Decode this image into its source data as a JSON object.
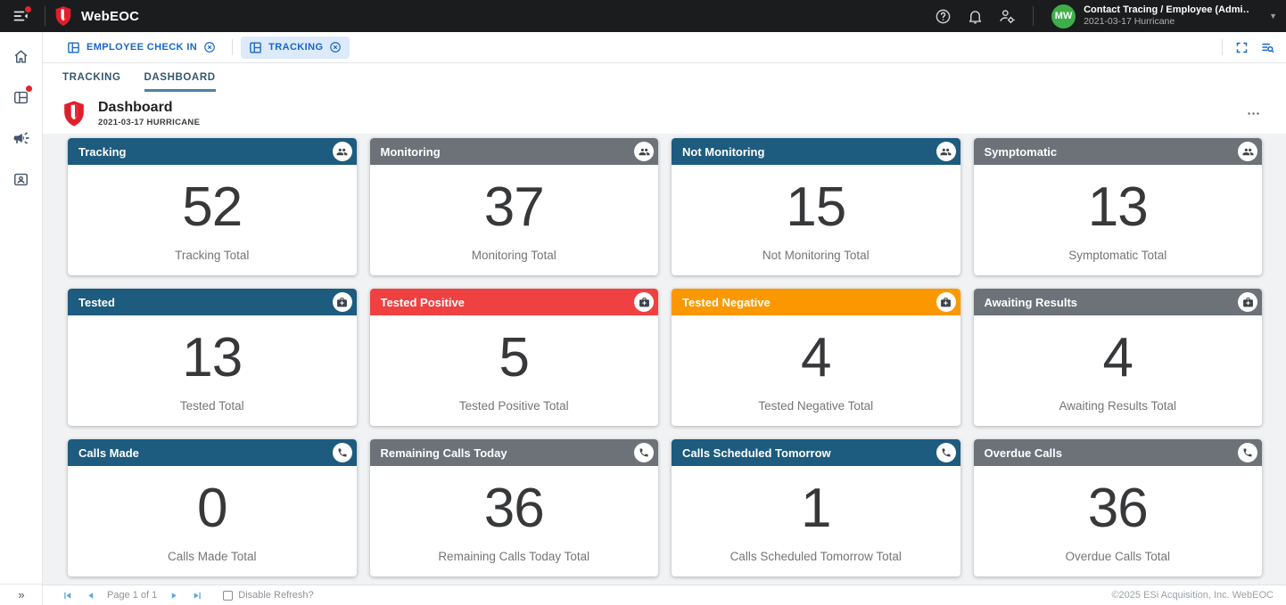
{
  "topbar": {
    "app_title": "WebEOC",
    "user_name": "Contact Tracing / Employee (Admi…",
    "user_incident": "2021-03-17 Hurricane",
    "avatar_initials": "MW",
    "icons": [
      "menu-open-icon",
      "help-icon",
      "notifications-icon",
      "manage-accounts-icon"
    ]
  },
  "sidebar": {
    "icons": [
      "home-icon",
      "boards-icon",
      "campaign-icon",
      "contacts-icon"
    ],
    "expand_label": "»"
  },
  "tabstrip": {
    "tabs": [
      {
        "label": "EMPLOYEE CHECK IN",
        "active": false
      },
      {
        "label": "TRACKING",
        "active": true
      }
    ],
    "icons": [
      "fullscreen-icon",
      "board-search-icon"
    ]
  },
  "board": {
    "subtabs": [
      {
        "label": "TRACKING",
        "active": false
      },
      {
        "label": "DASHBOARD",
        "active": true
      }
    ],
    "title": "Dashboard",
    "subtitle": "2021-03-17 HURRICANE",
    "more_options": "more-options-icon"
  },
  "colors": {
    "blue": "#1d5b7f",
    "gray": "#6c7278",
    "red": "#ef4141",
    "orange": "#fb9800",
    "tab_accent": "#1868c5",
    "avatar_green": "#3fae49",
    "logo_red": "#e01f2d"
  },
  "cards": [
    {
      "title": "Tracking",
      "value": "52",
      "label": "Tracking Total",
      "color": "blue",
      "icon": "groups-icon"
    },
    {
      "title": "Monitoring",
      "value": "37",
      "label": "Monitoring Total",
      "color": "gray",
      "icon": "groups-icon"
    },
    {
      "title": "Not Monitoring",
      "value": "15",
      "label": "Not Monitoring Total",
      "color": "blue",
      "icon": "groups-icon"
    },
    {
      "title": "Symptomatic",
      "value": "13",
      "label": "Symptomatic Total",
      "color": "gray",
      "icon": "groups-icon"
    },
    {
      "title": "Tested",
      "value": "13",
      "label": "Tested Total",
      "color": "blue",
      "icon": "medical-icon"
    },
    {
      "title": "Tested Positive",
      "value": "5",
      "label": "Tested Positive Total",
      "color": "red",
      "icon": "medical-icon"
    },
    {
      "title": "Tested Negative",
      "value": "4",
      "label": "Tested Negative Total",
      "color": "orange",
      "icon": "medical-icon"
    },
    {
      "title": "Awaiting Results",
      "value": "4",
      "label": "Awaiting Results Total",
      "color": "gray",
      "icon": "medical-icon"
    },
    {
      "title": "Calls Made",
      "value": "0",
      "label": "Calls Made Total",
      "color": "blue",
      "icon": "phone-icon"
    },
    {
      "title": "Remaining Calls Today",
      "value": "36",
      "label": "Remaining Calls Today Total",
      "color": "gray",
      "icon": "phone-icon"
    },
    {
      "title": "Calls Scheduled Tomorrow",
      "value": "1",
      "label": "Calls Scheduled Tomorrow Total",
      "color": "blue",
      "icon": "phone-icon"
    },
    {
      "title": "Overdue Calls",
      "value": "36",
      "label": "Overdue Calls Total",
      "color": "gray",
      "icon": "phone-icon"
    }
  ],
  "footer": {
    "page_text": "Page 1 of 1",
    "disable_refresh_label": "Disable Refresh?",
    "copyright": "©2025 ESi Acquisition, Inc. WebEOC"
  }
}
